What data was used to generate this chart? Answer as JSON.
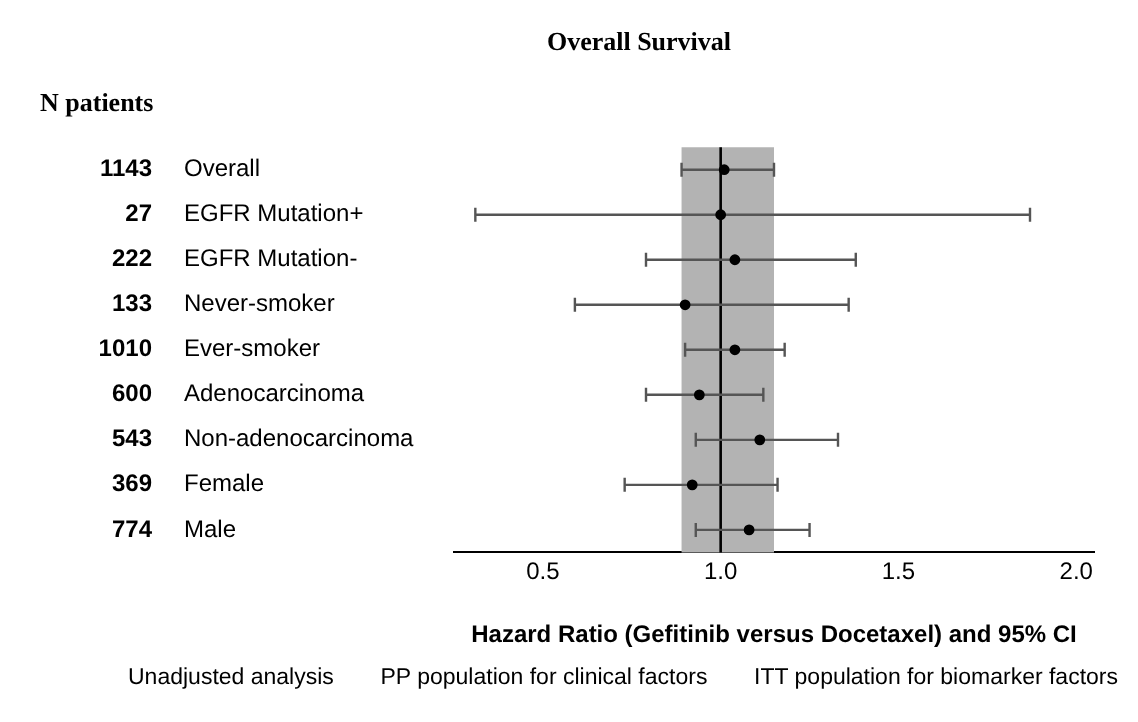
{
  "chart_data": {
    "type": "scatter",
    "orientation": "horizontal",
    "title": "Overall Survival",
    "xlabel": "Hazard Ratio (Gefitinib versus Docetaxel) and 95% CI",
    "legend_title": "N patients",
    "categories": [
      "Overall",
      "EGFR Mutation+",
      "EGFR Mutation-",
      "Never-smoker",
      "Ever-smoker",
      "Adenocarcinoma",
      "Non-adenocarcinoma",
      "Female",
      "Male"
    ],
    "y2_categories": [
      "1143",
      "27",
      "222",
      "133",
      "1010",
      "600",
      "543",
      "369",
      "774"
    ],
    "values": [
      1.01,
      1.0,
      1.04,
      0.9,
      1.04,
      0.94,
      1.11,
      0.92,
      1.08
    ],
    "errors": [
      [
        0.89,
        1.15
      ],
      [
        0.31,
        1.87
      ],
      [
        0.79,
        1.38
      ],
      [
        0.59,
        1.36
      ],
      [
        0.9,
        1.18
      ],
      [
        0.79,
        1.12
      ],
      [
        0.93,
        1.33
      ],
      [
        0.73,
        1.16
      ],
      [
        0.93,
        1.25
      ]
    ],
    "color": "#000000",
    "marker": "circle",
    "xlim": [
      0.25,
      2.05
    ],
    "xticks": [
      {
        "value": 0.5,
        "label": "0.5"
      },
      {
        "value": 1.0,
        "label": "1.0"
      },
      {
        "value": 1.5,
        "label": "1.5"
      },
      {
        "value": 2.0,
        "label": "2.0"
      }
    ],
    "bands": [
      {
        "axis": "x",
        "from": 0.89,
        "to": 1.15,
        "color": "#b3b3b3"
      }
    ],
    "ref_lines": [
      {
        "axis": "x",
        "value": 1.0,
        "color": "#000000"
      }
    ],
    "annotations": [
      "Unadjusted analysis",
      "PP population for clinical factors",
      "ITT population for biomarker factors"
    ]
  }
}
